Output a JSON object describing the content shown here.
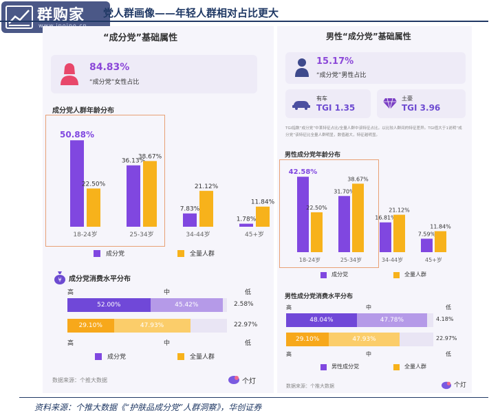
{
  "header": {
    "title": "党人群画像——年轻人群相对占比更大",
    "logo_text": "群购家",
    "logo_sub": "www.ipoipo.cn"
  },
  "left": {
    "title": "“成分党”基础属性",
    "female_pct": "84.83%",
    "female_label": "“成分党”女性占比",
    "age_title": "成分党人群年龄分布",
    "legend_a": "成分党",
    "legend_b": "全量人群",
    "consumption_title": "成分党消费水平分布",
    "cons_levels": [
      "高",
      "中",
      "低"
    ],
    "source": "数据来源：个推大数据",
    "brand": "个灯"
  },
  "right": {
    "title": "男性“成分党”基础属性",
    "male_pct": "15.17%",
    "male_label": "“成分党”男性占比",
    "car_label": "有车",
    "car_tgi": "TGI 1.35",
    "rich_label": "土豪",
    "rich_tgi": "TGI 3.96",
    "note": "TGI指数“成分党”中某特征占比/全量人群中该特征占比，以比较人群间的特征差异。TGI值大于1说明“成分党”该特征比全量人群明显，数值越大，特征越明显。",
    "age_title": "男性成分党年龄分布",
    "legend_a": "成分党",
    "legend_b": "全量人群",
    "consumption_title": "男性成分党消费水平分布",
    "cons_levels": [
      "高",
      "中",
      "低"
    ],
    "cons_legend_a": "男性成分党",
    "cons_legend_b": "全量人群",
    "source": "数据来源：个推大数据",
    "brand": "个灯"
  },
  "footer": {
    "source": "资料来源：个推大数据《“护肤品成分党”人群洞察》，华创证券"
  },
  "colors": {
    "purple": "#8047e0",
    "yellow": "#f7b21b",
    "bg_purple": "#b59ae8",
    "navy": "#1f3864"
  },
  "chart_data": [
    {
      "type": "bar",
      "title": "成分党人群年龄分布",
      "categories": [
        "18-24岁",
        "25-34岁",
        "34-44岁",
        "45+岁"
      ],
      "series": [
        {
          "name": "成分党",
          "values": [
            50.88,
            36.13,
            7.83,
            1.78
          ],
          "labels": [
            "50.88%",
            "36.13%",
            "7.83%",
            "1.78%"
          ]
        },
        {
          "name": "全量人群",
          "values": [
            22.5,
            38.67,
            21.12,
            11.84
          ],
          "labels": [
            "22.50%",
            "38.67%",
            "21.12%",
            "11.84%"
          ]
        }
      ],
      "ylim": [
        0,
        55
      ],
      "grid": false,
      "legend": "bottom"
    },
    {
      "type": "bar",
      "title": "男性成分党年龄分布",
      "categories": [
        "18-24岁",
        "25-34岁",
        "34-44岁",
        "45+岁"
      ],
      "series": [
        {
          "name": "成分党",
          "values": [
            42.58,
            31.7,
            16.81,
            7.59
          ],
          "labels": [
            "42.58%",
            "31.70%",
            "16.81%",
            "7.59%"
          ]
        },
        {
          "name": "全量人群",
          "values": [
            22.5,
            38.67,
            21.12,
            11.84
          ],
          "labels": [
            "22.50%",
            "38.67%",
            "21.12%",
            "11.84%"
          ]
        }
      ],
      "ylim": [
        0,
        45
      ],
      "grid": false,
      "legend": "bottom"
    },
    {
      "type": "bar",
      "title": "成分党消费水平分布",
      "categories": [
        "高",
        "中",
        "低"
      ],
      "series": [
        {
          "name": "成分党",
          "values": [
            52.0,
            45.42,
            2.58
          ],
          "labels": [
            "52.00%",
            "45.42%",
            "2.58%"
          ]
        },
        {
          "name": "全量人群",
          "values": [
            29.1,
            47.93,
            22.97
          ],
          "labels": [
            "29.10%",
            "47.93%",
            "22.97%"
          ]
        }
      ],
      "stacked": true,
      "orientation": "horizontal",
      "legend": "bottom"
    },
    {
      "type": "bar",
      "title": "男性成分党消费水平分布",
      "categories": [
        "高",
        "中",
        "低"
      ],
      "series": [
        {
          "name": "男性成分党",
          "values": [
            48.04,
            47.78,
            4.18
          ],
          "labels": [
            "48.04%",
            "47.78%",
            "4.18%"
          ]
        },
        {
          "name": "全量人群",
          "values": [
            29.1,
            47.93,
            22.97
          ],
          "labels": [
            "29.10%",
            "47.93%",
            "22.97%"
          ]
        }
      ],
      "stacked": true,
      "orientation": "horizontal",
      "legend": "bottom"
    }
  ]
}
